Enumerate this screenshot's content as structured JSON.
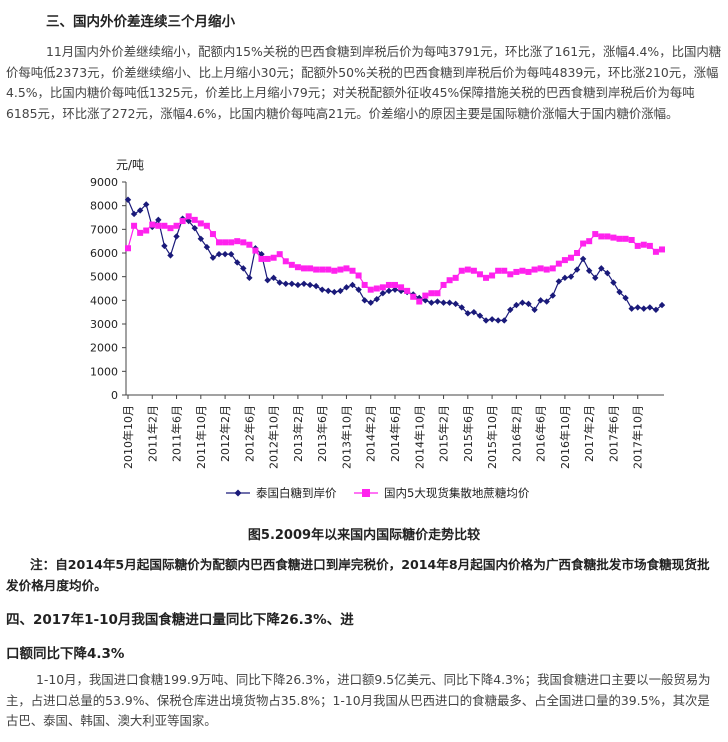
{
  "section3": {
    "heading": "三、国内外价差连续三个月缩小",
    "paragraph": "11月国内外价差继续缩小，配额内15%关税的巴西食糖到岸税后价为每吨3791元，环比涨了161元，涨幅4.4%，比国内糖价每吨低2373元，价差继续缩小、比上月缩小30元；配额外50%关税的巴西食糖到岸税后价为每吨4839元，环比涨210元，涨幅4.5%，比国内糖价每吨低1325元，价差比上月缩小79元；对关税配额外征收45%保障措施关税的巴西食糖到岸税后价为每吨6185元，环比涨了272元，涨幅4.6%，比国内糖价每吨高21元。价差缩小的原因主要是国际糖价涨幅大于国内糖价涨幅。"
  },
  "chart": {
    "caption": "图5.2009年以来国内国际糖价走势比较",
    "note": "注：自2014年5月起国际糖价为配额内巴西食糖进口到岸完税价，2014年8月起国内价格为广西食糖批发市场食糖现货批发价格月度均价。"
  },
  "chart_data": {
    "type": "line",
    "ylabel": "元/吨",
    "ylim": [
      0,
      9000
    ],
    "yticks": [
      0,
      1000,
      2000,
      3000,
      4000,
      5000,
      6000,
      7000,
      8000,
      9000
    ],
    "start_month": "2010-10",
    "x_tick_labels": [
      "2010年10月",
      "2011年2月",
      "2011年6月",
      "2011年10月",
      "2012年2月",
      "2012年6月",
      "2012年10月",
      "2013年2月",
      "2013年6月",
      "2013年10月",
      "2014年2月",
      "2014年6月",
      "2014年10月",
      "2015年2月",
      "2015年6月",
      "2015年10月",
      "2016年2月",
      "2016年6月",
      "2016年10月",
      "2017年2月",
      "2017年6月",
      "2017年10月"
    ],
    "legend_position": "bottom",
    "series": [
      {
        "name": "泰国白糖到岸价",
        "color": "#1a1a7a",
        "marker": "diamond",
        "values": [
          8250,
          7650,
          7800,
          8050,
          7100,
          7400,
          6300,
          5900,
          6700,
          7450,
          7350,
          7050,
          6600,
          6250,
          5800,
          5950,
          5950,
          5950,
          5600,
          5350,
          4950,
          6200,
          5950,
          4850,
          4950,
          4750,
          4700,
          4700,
          4650,
          4700,
          4650,
          4600,
          4450,
          4400,
          4350,
          4400,
          4550,
          4650,
          4450,
          4000,
          3900,
          4050,
          4300,
          4400,
          4450,
          4400,
          4350,
          4250,
          4100,
          4000,
          3900,
          3950,
          3900,
          3900,
          3850,
          3700,
          3450,
          3500,
          3350,
          3150,
          3200,
          3150,
          3150,
          3600,
          3800,
          3900,
          3850,
          3600,
          4000,
          3950,
          4200,
          4800,
          4950,
          5000,
          5300,
          5750,
          5250,
          4950,
          5350,
          5150,
          4750,
          4350,
          4100,
          3650,
          3700,
          3650,
          3700,
          3600,
          3800
        ]
      },
      {
        "name": "国内5大现货集散地蔗糖均价",
        "color": "#ff22ee",
        "marker": "square",
        "values": [
          6200,
          7150,
          6850,
          6950,
          7200,
          7150,
          7150,
          7050,
          7150,
          7350,
          7550,
          7400,
          7250,
          7150,
          6800,
          6450,
          6450,
          6450,
          6500,
          6450,
          6350,
          6100,
          5750,
          5750,
          5800,
          5950,
          5650,
          5500,
          5400,
          5350,
          5350,
          5300,
          5300,
          5300,
          5250,
          5300,
          5350,
          5250,
          5050,
          4650,
          4450,
          4500,
          4550,
          4650,
          4650,
          4550,
          4400,
          4150,
          3950,
          4200,
          4300,
          4300,
          4650,
          4850,
          4950,
          5250,
          5300,
          5250,
          5100,
          4950,
          5050,
          5250,
          5250,
          5100,
          5200,
          5250,
          5200,
          5300,
          5350,
          5300,
          5350,
          5550,
          5700,
          5800,
          6000,
          6400,
          6500,
          6800,
          6700,
          6700,
          6650,
          6600,
          6600,
          6550,
          6300,
          6350,
          6300,
          6050,
          6150
        ]
      }
    ]
  },
  "section4": {
    "heading_line1": "四、2017年1-10月我国食糖进口量同比下降26.3%、进",
    "heading_line2": "口额同比下降4.3%",
    "paragraph": "1-10月，我国进口食糖199.9万吨、同比下降26.3%，进口额9.5亿美元、同比下降4.3%；我国食糖进口主要以一般贸易为主，占进口总量的53.9%、保税仓库进出境货物占35.8%；1-10月我国从巴西进口的食糖最多、占全国进口量的39.5%，其次是古巴、泰国、韩国、澳大利亚等国家。"
  }
}
